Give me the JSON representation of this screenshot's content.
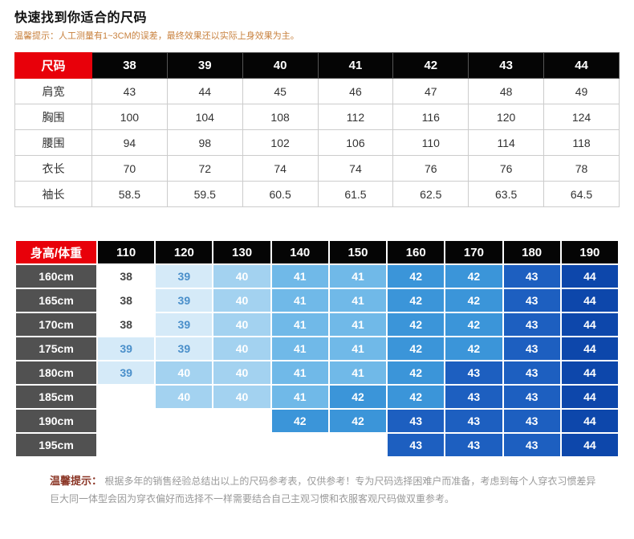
{
  "header": {
    "title": "快速找到你适合的尺码",
    "subtitle": "温馨提示：人工测量有1~3CM的误差，最终效果还以实际上身效果为主。"
  },
  "size_table": {
    "header": [
      "尺码",
      "38",
      "39",
      "40",
      "41",
      "42",
      "43",
      "44"
    ],
    "rows": [
      {
        "label": "肩宽",
        "values": [
          "43",
          "44",
          "45",
          "46",
          "47",
          "48",
          "49"
        ]
      },
      {
        "label": "胸围",
        "values": [
          "100",
          "104",
          "108",
          "112",
          "116",
          "120",
          "124"
        ]
      },
      {
        "label": "腰围",
        "values": [
          "94",
          "98",
          "102",
          "106",
          "110",
          "114",
          "118"
        ]
      },
      {
        "label": "衣长",
        "values": [
          "70",
          "72",
          "74",
          "74",
          "76",
          "76",
          "78"
        ]
      },
      {
        "label": "袖长",
        "values": [
          "58.5",
          "59.5",
          "60.5",
          "61.5",
          "62.5",
          "63.5",
          "64.5"
        ]
      }
    ]
  },
  "fit_matrix": {
    "header": [
      "身高/体重",
      "110",
      "120",
      "130",
      "140",
      "150",
      "160",
      "170",
      "180",
      "190"
    ],
    "rows": [
      {
        "label": "160cm",
        "values": [
          "38",
          "39",
          "40",
          "41",
          "41",
          "42",
          "42",
          "43",
          "44"
        ]
      },
      {
        "label": "165cm",
        "values": [
          "38",
          "39",
          "40",
          "41",
          "41",
          "42",
          "42",
          "43",
          "44"
        ]
      },
      {
        "label": "170cm",
        "values": [
          "38",
          "39",
          "40",
          "41",
          "41",
          "42",
          "42",
          "43",
          "44"
        ]
      },
      {
        "label": "175cm",
        "values": [
          "39",
          "39",
          "40",
          "41",
          "41",
          "42",
          "42",
          "43",
          "44"
        ]
      },
      {
        "label": "180cm",
        "values": [
          "39",
          "40",
          "40",
          "41",
          "41",
          "42",
          "43",
          "43",
          "44"
        ]
      },
      {
        "label": "185cm",
        "values": [
          "",
          "40",
          "40",
          "41",
          "42",
          "42",
          "43",
          "43",
          "44"
        ]
      },
      {
        "label": "190cm",
        "values": [
          "",
          "",
          "",
          "42",
          "42",
          "43",
          "43",
          "43",
          "44"
        ]
      },
      {
        "label": "195cm",
        "values": [
          "",
          "",
          "",
          "",
          "",
          "43",
          "43",
          "43",
          "44"
        ]
      }
    ]
  },
  "footer": {
    "label": "温馨提示：",
    "text": "根据多年的销售经验总结出以上的尺码参考表，仅供参考！专为尺码选择困难户而准备，考虑到每个人穿衣习惯差异巨大同一体型会因为穿衣偏好而选择不一样需要结合自己主观习惯和衣服客观尺码做双重参考。"
  },
  "colors": {
    "accent_red": "#e8000a",
    "header_black": "#050505",
    "row_label_gray": "#515151",
    "subtitle_orange": "#c8813e",
    "footer_gray": "#999999",
    "footer_label_brown": "#8b3626",
    "grid_line": "#cccccc",
    "cell_colors": {
      "": {
        "bg": "#ffffff",
        "text": "#444444"
      },
      "38": {
        "bg": "#ffffff",
        "text": "#444444"
      },
      "39": {
        "bg": "#d5eaf8",
        "text": "#4a8fca"
      },
      "40": {
        "bg": "#a3d2f0",
        "text": "#ffffff"
      },
      "41": {
        "bg": "#70b9e8",
        "text": "#ffffff"
      },
      "42": {
        "bg": "#3b95d9",
        "text": "#ffffff"
      },
      "43": {
        "bg": "#1d5fc0",
        "text": "#ffffff"
      },
      "44": {
        "bg": "#0d47ab",
        "text": "#ffffff"
      }
    }
  }
}
